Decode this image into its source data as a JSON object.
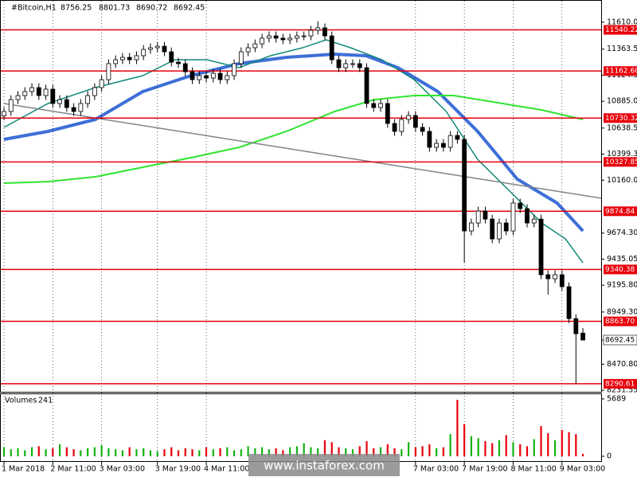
{
  "chart_data": [
    {
      "type": "candlestick",
      "symbol": "#Bitcoin,H1",
      "categories": [
        "1 Mar 2018",
        null,
        null,
        null,
        null,
        null,
        null,
        "2 Mar 11:00",
        null,
        null,
        null,
        null,
        null,
        null,
        "3 Mar 03:00",
        null,
        null,
        null,
        null,
        null,
        null,
        null,
        "3 Mar 19:00",
        null,
        null,
        null,
        null,
        null,
        null,
        "4 Mar 11:00",
        null,
        null,
        null,
        null,
        null,
        null,
        null,
        null,
        null,
        null,
        null,
        null,
        null,
        null,
        null,
        null,
        null,
        null,
        null,
        null,
        null,
        null,
        null,
        null,
        null,
        null,
        null,
        null,
        null,
        "7 Mar 03:00",
        null,
        null,
        null,
        null,
        null,
        null,
        "7 Mar 19:00",
        null,
        null,
        null,
        null,
        null,
        null,
        "8 Mar 11:00",
        null,
        null,
        null,
        null,
        null,
        null,
        "9 Mar 03:00",
        null,
        null,
        null
      ],
      "open": [
        10750,
        10791,
        10900,
        10937,
        10974,
        11010,
        10937,
        10996,
        10864,
        10900,
        10827,
        10791,
        10864,
        10937,
        11010,
        11083,
        11230,
        11266,
        11288,
        11266,
        11303,
        11361,
        11376,
        11390,
        11339,
        11244,
        11230,
        11156,
        11083,
        11120,
        11098,
        11142,
        11083,
        11120,
        11230,
        11339,
        11376,
        11412,
        11464,
        11485,
        11464,
        11449,
        11464,
        11485,
        11485,
        11537,
        11559,
        11485,
        11266,
        11193,
        11230,
        11230,
        11193,
        10864,
        10827,
        10864,
        10681,
        10608,
        10718,
        10754,
        10645,
        10608,
        10462,
        10498,
        10462,
        10571,
        10535,
        9694,
        9767,
        9877,
        9803,
        9621,
        9767,
        9694,
        9950,
        9899,
        9767,
        9803,
        9292,
        9255,
        9292,
        9182,
        8889,
        8756.25
      ],
      "high": [
        10831,
        10940,
        10977,
        11014,
        11050,
        11050,
        11036,
        11036,
        10940,
        10940,
        10867,
        10904,
        10977,
        11050,
        11123,
        11270,
        11306,
        11328,
        11328,
        11343,
        11401,
        11416,
        11430,
        11430,
        11379,
        11284,
        11270,
        11196,
        11160,
        11160,
        11182,
        11182,
        11160,
        11270,
        11379,
        11416,
        11452,
        11504,
        11525,
        11525,
        11504,
        11504,
        11525,
        11525,
        11577,
        11620,
        11599,
        11525,
        11306,
        11270,
        11270,
        11270,
        11233,
        10904,
        10904,
        10904,
        10721,
        10758,
        10794,
        10794,
        10685,
        10648,
        10538,
        10538,
        10611,
        10611,
        10575,
        9807,
        9917,
        9917,
        9843,
        9807,
        9807,
        9990,
        9990,
        9939,
        9843,
        9843,
        9332,
        9332,
        9332,
        9222,
        8929,
        8801.73
      ],
      "low": [
        10710,
        10751,
        10860,
        10897,
        10934,
        10897,
        10897,
        10824,
        10824,
        10787,
        10751,
        10751,
        10824,
        10897,
        10970,
        11043,
        11190,
        11226,
        11226,
        11226,
        11263,
        11321,
        11336,
        11299,
        11204,
        11190,
        11116,
        11043,
        11043,
        11058,
        11058,
        11043,
        11043,
        11080,
        11190,
        11299,
        11336,
        11372,
        11424,
        11424,
        11409,
        11409,
        11424,
        11445,
        11445,
        11497,
        11445,
        11226,
        11153,
        11153,
        11190,
        11153,
        10824,
        10787,
        10787,
        10641,
        10568,
        10568,
        10678,
        10605,
        10568,
        10422,
        10422,
        10422,
        10422,
        10495,
        9401,
        9654,
        9727,
        9763,
        9581,
        9581,
        9654,
        9654,
        9859,
        9727,
        9727,
        9252,
        9110,
        9215,
        9142,
        8849,
        8290,
        8690.72
      ],
      "close": [
        10791,
        10900,
        10937,
        10974,
        11010,
        10937,
        10996,
        10864,
        10900,
        10827,
        10791,
        10864,
        10937,
        11010,
        11083,
        11230,
        11266,
        11288,
        11266,
        11303,
        11361,
        11376,
        11390,
        11339,
        11244,
        11230,
        11156,
        11083,
        11120,
        11098,
        11142,
        11083,
        11120,
        11230,
        11339,
        11376,
        11412,
        11464,
        11485,
        11464,
        11449,
        11464,
        11485,
        11485,
        11537,
        11559,
        11485,
        11266,
        11193,
        11230,
        11230,
        11193,
        10864,
        10827,
        10864,
        10681,
        10608,
        10718,
        10754,
        10645,
        10608,
        10462,
        10498,
        10462,
        10571,
        10535,
        9694,
        9767,
        9877,
        9803,
        9621,
        9767,
        9694,
        9950,
        9899,
        9767,
        9803,
        9292,
        9255,
        9292,
        9182,
        8889,
        8750,
        8692.45
      ],
      "current_price": 8692.45,
      "ylim": [
        8217,
        11778
      ],
      "yticks": [
        11610.05,
        11363.55,
        {
          "value": 11124.3,
          "label": "11124.30"
        },
        10885.05,
        10638.55,
        {
          "value": 10399.3,
          "label": "10399.30"
        },
        10160.05,
        {
          "value": 9674.3,
          "label": "9674.30"
        },
        9435.05,
        {
          "value": 9195.8,
          "label": "9195.80"
        },
        {
          "value": 8949.3,
          "label": "8949.30"
        },
        {
          "value": 8470.8,
          "label": "8470.80"
        },
        8231.55
      ],
      "levels": [
        11540.22,
        {
          "value": 11162.6,
          "label": "11162.60"
        },
        10730.32,
        10327.85,
        9874.84,
        9340.38,
        {
          "value": 8863.7,
          "label": "8863.70"
        },
        8290.61
      ],
      "level_color": "#e8000b",
      "lines": [
        {
          "color": "#3e6fd8",
          "width": 4,
          "x": [
            0,
            6.3,
            13.1,
            19.9,
            26.8,
            33.7,
            40.5,
            47.4,
            51.9,
            56.5,
            62.2,
            67.9,
            73.6,
            79.3,
            83
          ],
          "values": [
            10535,
            10608,
            10718,
            10974,
            11120,
            11230,
            11288,
            11317,
            11303,
            11193,
            10974,
            10608,
            10169,
            9950,
            9694
          ]
        },
        {
          "color": "#12897a",
          "width": 1.5,
          "x": [
            0,
            6.3,
            13.1,
            19.9,
            24.5,
            29.1,
            33.7,
            38.2,
            42.8,
            46.2,
            49.7,
            54.2,
            58.8,
            63.4,
            67.9,
            72.5,
            77.1,
            80.5,
            83
          ],
          "values": [
            10645,
            10864,
            11010,
            11120,
            11266,
            11266,
            11193,
            11303,
            11376,
            11449,
            11376,
            11266,
            11083,
            10791,
            10352,
            10060,
            9767,
            9621,
            9401
          ]
        },
        {
          "color": "#2fe52f",
          "width": 2,
          "x": [
            0,
            6.3,
            13.1,
            19.9,
            26.8,
            33.7,
            40.5,
            47.4,
            53.1,
            58.8,
            64.5,
            70.2,
            77.1,
            83
          ],
          "values": [
            10133,
            10147,
            10191,
            10279,
            10367,
            10462,
            10608,
            10791,
            10900,
            10937,
            10937,
            10878,
            10805,
            10718
          ]
        },
        {
          "color": "#7f8488",
          "width": 1.5,
          "x": [
            0,
            90.8
          ],
          "values": [
            10864,
            9942
          ]
        }
      ]
    },
    {
      "type": "volume",
      "title": "Volumes",
      "values": [
        900,
        700,
        800,
        600,
        900,
        1000,
        700,
        800,
        1200,
        900,
        700,
        600,
        800,
        900,
        1100,
        800,
        700,
        600,
        900,
        700,
        800,
        600,
        500,
        700,
        900,
        600,
        800,
        700,
        600,
        900,
        700,
        800,
        900,
        600,
        700,
        1000,
        800,
        900,
        700,
        800,
        600,
        900,
        1000,
        1300,
        900,
        800,
        1600,
        1400,
        900,
        800,
        700,
        1000,
        1500,
        800,
        900,
        1200,
        800,
        700,
        1400,
        900,
        1000,
        1200,
        800,
        900,
        2200,
        5600,
        3200,
        2000,
        1800,
        1500,
        1300,
        1600,
        2100,
        1400,
        1200,
        1000,
        1700,
        3000,
        2300,
        1600,
        2600,
        2400,
        2200,
        241
      ],
      "up_color": "#15b215",
      "down_color": "#e8000b",
      "ylim": [
        0,
        6000
      ],
      "yticks": [
        5689,
        0
      ]
    }
  ],
  "watermark": "www.instaforex.com"
}
